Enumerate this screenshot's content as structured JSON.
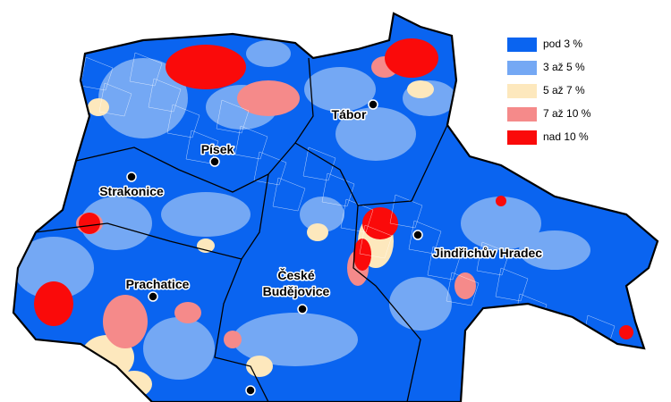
{
  "legend": {
    "items": [
      {
        "label": "pod 3 %",
        "color": "#0a64f0"
      },
      {
        "label": "3 až 5 %",
        "color": "#74a8f4"
      },
      {
        "label": "5 až 7 %",
        "color": "#fde8bd"
      },
      {
        "label": "7 až 10 %",
        "color": "#f58a8a"
      },
      {
        "label": "nad 10 %",
        "color": "#fa0a0a"
      }
    ]
  },
  "cities": [
    {
      "lines": [
        "Tábor"
      ]
    },
    {
      "lines": [
        "Písek"
      ]
    },
    {
      "lines": [
        "Strakonice"
      ]
    },
    {
      "lines": [
        "Jindřichův Hradec"
      ]
    },
    {
      "lines": [
        "Prachatice"
      ]
    },
    {
      "lines": [
        "České",
        "Budějovice"
      ]
    }
  ]
}
